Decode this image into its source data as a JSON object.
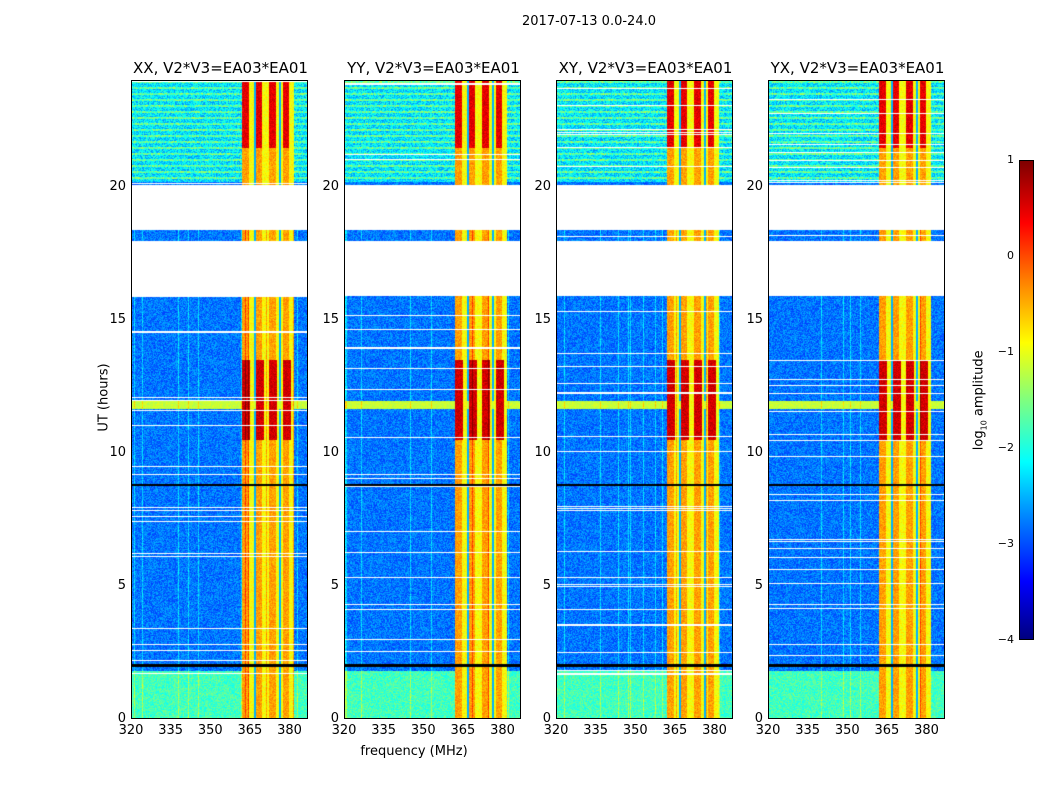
{
  "suptitle": "2017-07-13 0.0-24.0",
  "chart_data": {
    "type": "heatmap",
    "title": "2017-07-13 0.0-24.0",
    "xlabel": "frequency (MHz)",
    "ylabel": "UT (hours)",
    "xlim": [
      320,
      387
    ],
    "ylim": [
      0,
      24
    ],
    "xticks": [
      320,
      335,
      350,
      365,
      380
    ],
    "yticks": [
      0,
      5,
      10,
      15,
      20
    ],
    "panels": [
      {
        "title": "XX, V2*V3=EA03*EA01"
      },
      {
        "title": "YY, V2*V3=EA03*EA01"
      },
      {
        "title": "XY, V2*V3=EA03*EA01"
      },
      {
        "title": "YX, V2*V3=EA03*EA01"
      }
    ],
    "flagged_hours": [
      [
        15.9,
        18.0
      ],
      [
        18.4,
        20.1
      ]
    ],
    "rfi_band_mhz": [
      362,
      382
    ],
    "strong_rfi_hours": [
      10.5,
      13.5
    ],
    "colorbar": {
      "label": "log10 amplitude",
      "label_main": "log",
      "label_sub": "10",
      "label_rest": " amplitude",
      "range": [
        -4,
        1
      ],
      "ticks": [
        "1",
        "0",
        "−1",
        "−2",
        "−3",
        "−4"
      ],
      "colormap": "jet"
    }
  }
}
